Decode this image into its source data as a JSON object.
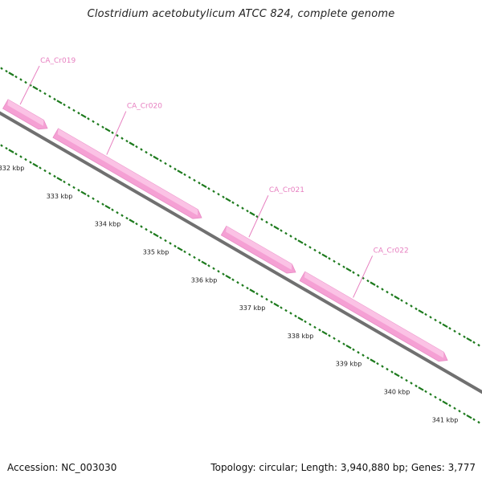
{
  "title": "Clostridium acetobutylicum ATCC 824, complete genome",
  "footer": {
    "accession": "Accession: NC_003030",
    "stats": "Topology: circular; Length: 3,940,880 bp; Genes: 3,777"
  },
  "colors": {
    "gene": "#f5a0d4",
    "gene_label": "#e77fc0",
    "backbone": "#808080",
    "tick": "#1d7a1d"
  },
  "tick_labels": [
    "332 kbp",
    "333 kbp",
    "334 kbp",
    "335 kbp",
    "336 kbp",
    "337 kbp",
    "338 kbp",
    "339 kbp",
    "340 kbp",
    "341 kbp"
  ],
  "genes": [
    {
      "name": "CA_Cr019",
      "start_kbp": 331.88,
      "end_kbp": 332.75,
      "strand": "+"
    },
    {
      "name": "CA_Cr020",
      "start_kbp": 332.92,
      "end_kbp": 335.95,
      "strand": "+"
    },
    {
      "name": "CA_Cr021",
      "start_kbp": 336.41,
      "end_kbp": 337.9,
      "strand": "+"
    },
    {
      "name": "CA_Cr022",
      "start_kbp": 338.04,
      "end_kbp": 341.05,
      "strand": "+"
    }
  ]
}
